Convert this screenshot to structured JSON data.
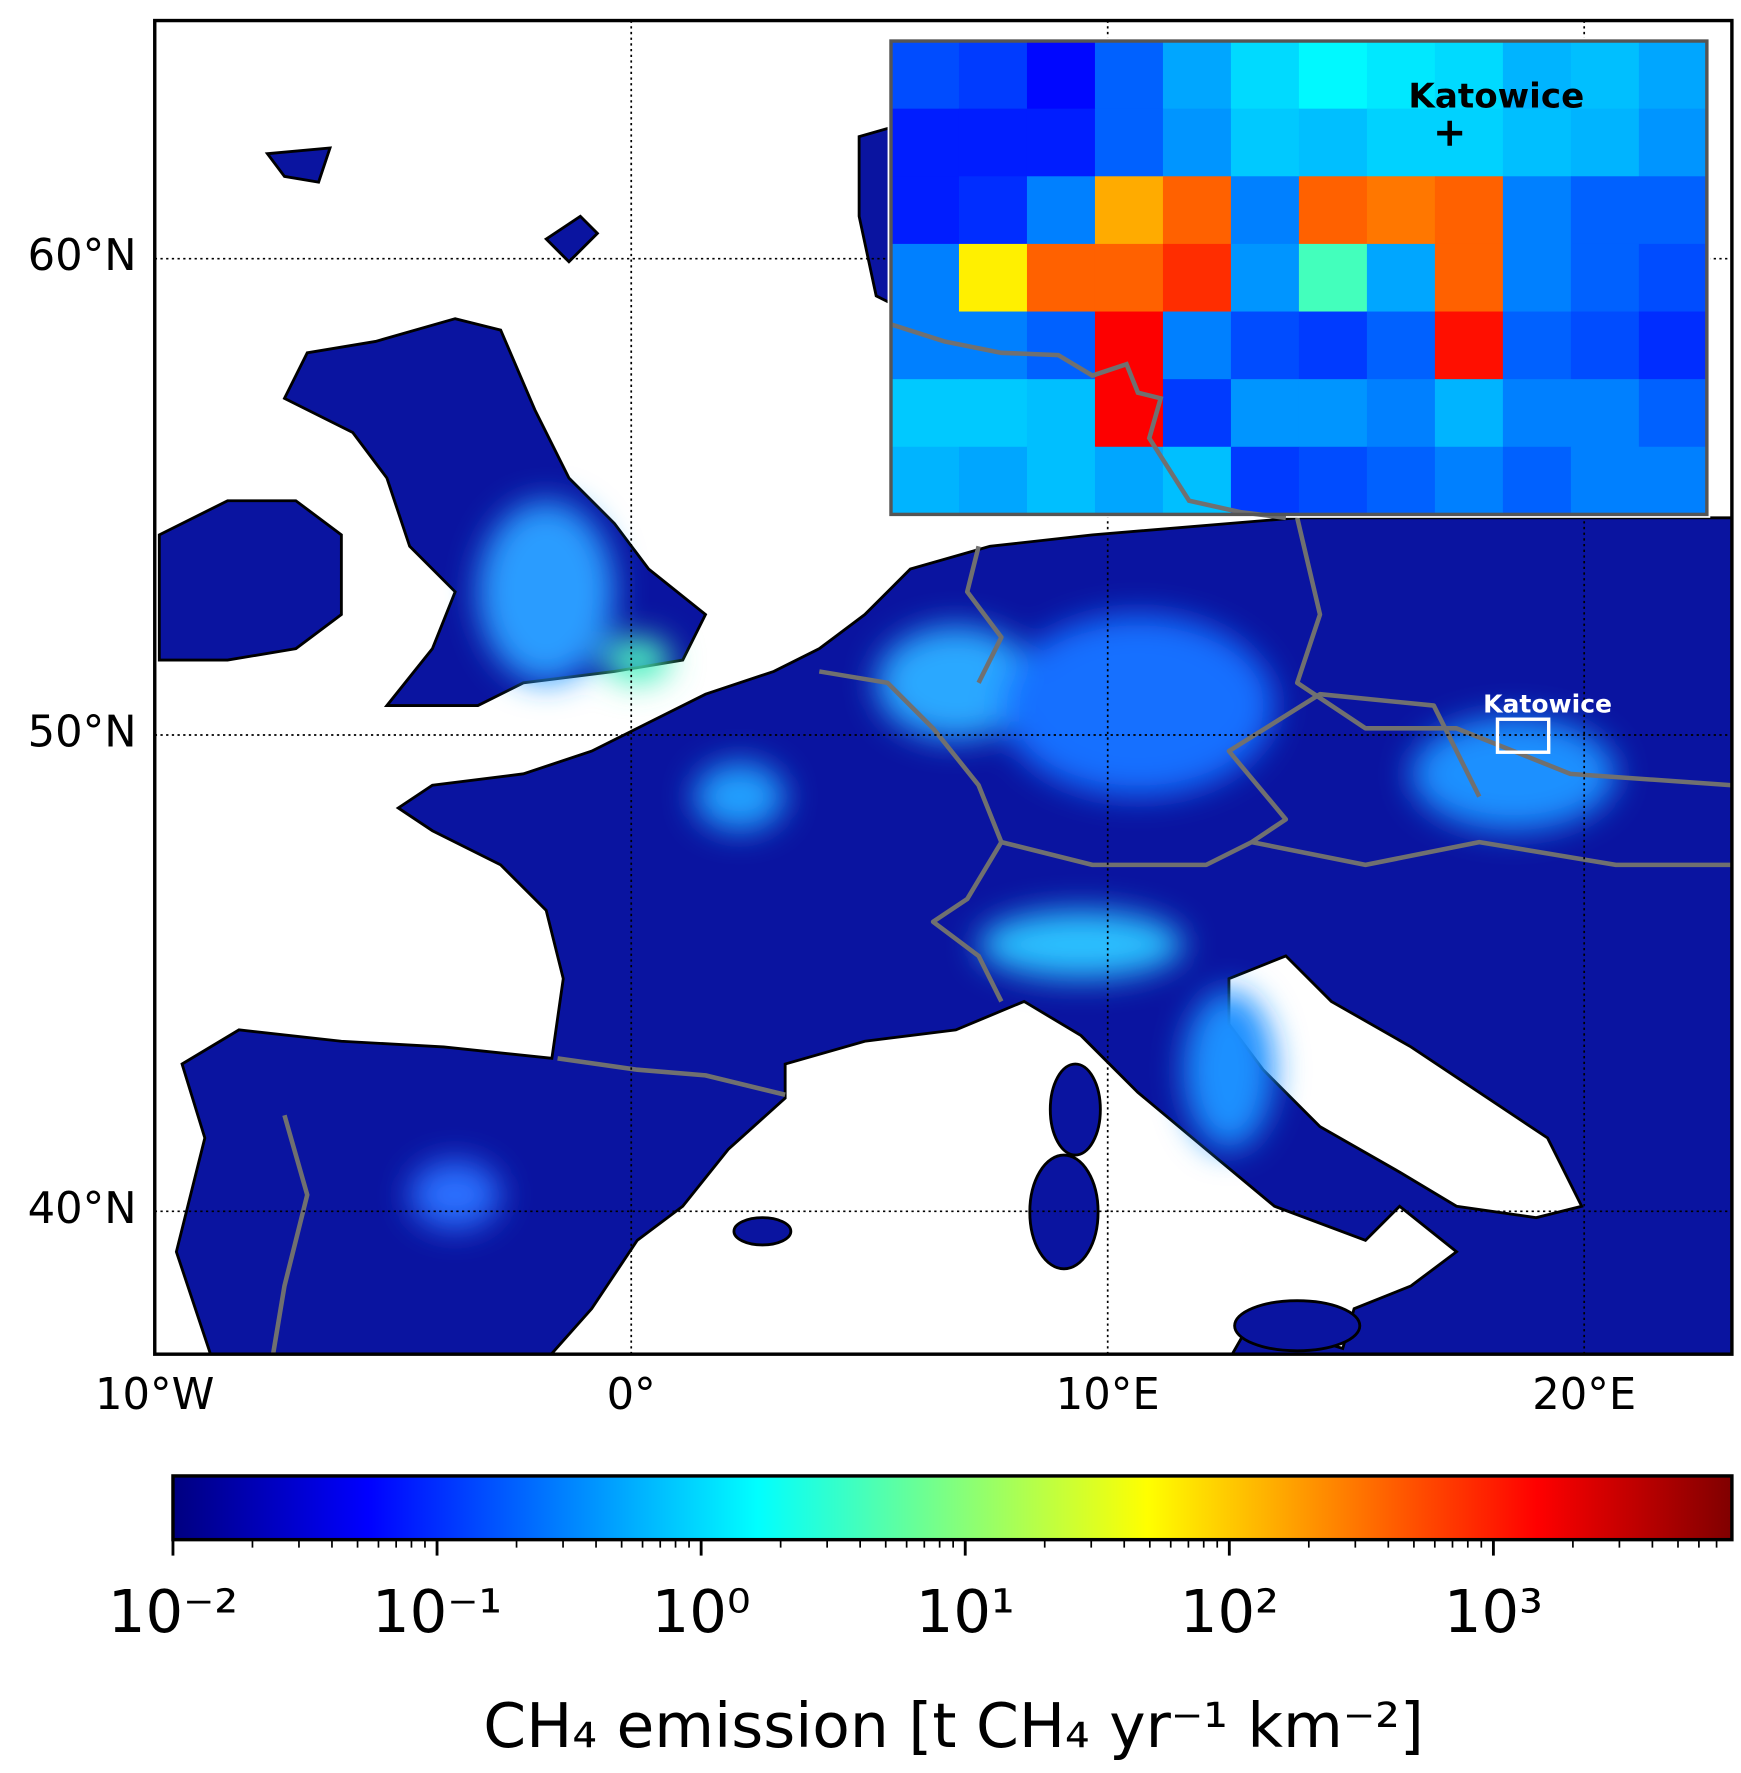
{
  "chart_data": {
    "type": "map",
    "xlim": [
      -10,
      23.1
    ],
    "ylim": [
      37,
      65
    ],
    "xticks": [
      {
        "value": -10,
        "label": "10°W"
      },
      {
        "value": 0,
        "label": "0°"
      },
      {
        "value": 10,
        "label": "10°E"
      },
      {
        "value": 20,
        "label": "20°E"
      }
    ],
    "yticks": [
      {
        "value": 40,
        "label": "40°N"
      },
      {
        "value": 50,
        "label": "50°N"
      },
      {
        "value": 60,
        "label": "60°N"
      }
    ],
    "grid": true,
    "annotation": "Katowice",
    "inset": {
      "title": "Katowice",
      "values": [
        [
          0.15,
          0.12,
          0.06,
          0.2,
          0.5,
          1,
          1.5,
          1.2,
          1,
          0.6,
          0.7,
          0.5
        ],
        [
          0.08,
          0.08,
          0.08,
          0.2,
          0.4,
          0.8,
          0.7,
          0.9,
          0.9,
          0.7,
          0.6,
          0.4
        ],
        [
          0.08,
          0.1,
          0.3,
          150,
          400,
          0.3,
          400,
          300,
          400,
          0.3,
          0.2,
          0.2
        ],
        [
          0.3,
          60,
          400,
          400,
          800,
          0.4,
          4,
          0.5,
          400,
          0.3,
          0.2,
          0.15
        ],
        [
          0.3,
          0.3,
          0.2,
          1500,
          0.3,
          0.15,
          0.12,
          0.2,
          1200,
          0.2,
          0.15,
          0.1
        ],
        [
          0.8,
          0.8,
          0.7,
          1500,
          0.12,
          0.4,
          0.4,
          0.3,
          0.6,
          0.3,
          0.3,
          0.2
        ],
        [
          0.6,
          0.5,
          0.7,
          0.5,
          0.7,
          0.12,
          0.15,
          0.2,
          0.3,
          0.2,
          0.3,
          0.3
        ]
      ]
    },
    "colorbar": {
      "label": "CH₄ emission [t CH₄ yr⁻¹ km⁻²]",
      "scale": "log",
      "colormap": "jet",
      "lim": [
        0.01,
        8000
      ],
      "ticks": [
        {
          "value": 0.01,
          "label": "10⁻²"
        },
        {
          "value": 0.1,
          "label": "10⁻¹"
        },
        {
          "value": 1,
          "label": "10⁰"
        },
        {
          "value": 10,
          "label": "10¹"
        },
        {
          "value": 100,
          "label": "10²"
        },
        {
          "value": 1000,
          "label": "10³"
        }
      ],
      "minor_ticks": [
        0.02,
        0.03,
        0.04,
        0.05,
        0.06,
        0.07,
        0.08,
        0.09,
        0.2,
        0.3,
        0.4,
        0.5,
        0.6,
        0.7,
        0.8,
        0.9,
        2,
        3,
        4,
        5,
        6,
        7,
        8,
        9,
        20,
        30,
        40,
        50,
        60,
        70,
        80,
        90,
        200,
        300,
        400,
        500,
        600,
        700,
        800,
        900,
        2000,
        3000,
        4000,
        5000,
        6000,
        7000
      ]
    }
  }
}
